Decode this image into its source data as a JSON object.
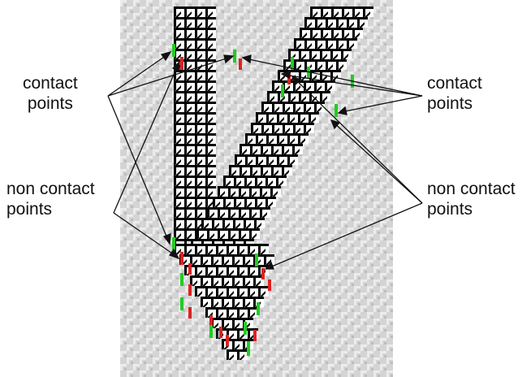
{
  "labels": {
    "left_contact": "contact\npoints",
    "left_noncontact": "non contact\npoints",
    "right_contact": "contact\npoints",
    "right_noncontact": "non contact\npoints"
  },
  "colors": {
    "background_cell_light": "#e2e2e2",
    "background_cell_mid": "#c8c8c8",
    "automaton_black": "#000000",
    "automaton_white": "#ffffff",
    "contact_marker": "#22cc22",
    "noncontact_marker": "#dd2222",
    "arrow": "#111111"
  },
  "legend": {
    "contact": "green marker",
    "non_contact": "red marker"
  }
}
